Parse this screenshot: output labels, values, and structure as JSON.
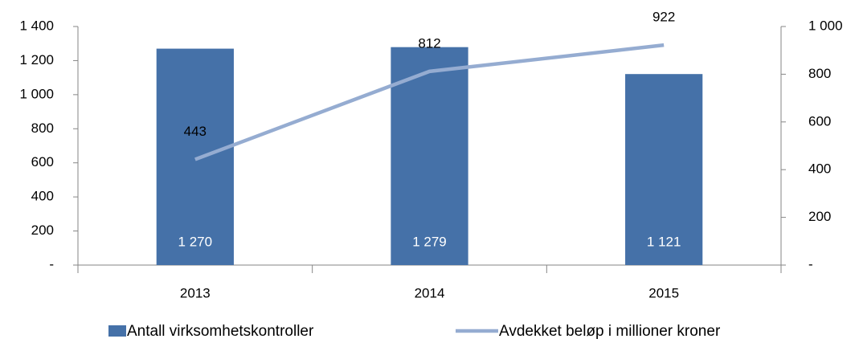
{
  "chart_data": {
    "type": "combo",
    "categories": [
      "2013",
      "2014",
      "2015"
    ],
    "series": [
      {
        "name": "Antall virksomhetskontroller",
        "type": "bar",
        "color": "#4571a8",
        "values": [
          1270,
          1279,
          1121
        ],
        "value_labels": [
          "1 270",
          "1 279",
          "1 121"
        ]
      },
      {
        "name": "Avdekket beløp i millioner kroner",
        "type": "line",
        "axis": "y2",
        "color": "#95acd1",
        "values": [
          443,
          812,
          922
        ]
      }
    ],
    "ylim": [
      0,
      1400
    ],
    "yticks": [
      {
        "value": 0,
        "label": "-"
      },
      200,
      400,
      600,
      800,
      {
        "value": 1000,
        "label": "1 000"
      },
      {
        "value": 1200,
        "label": "1 200"
      },
      {
        "value": 1400,
        "label": "1 400"
      }
    ],
    "y2lim": [
      0,
      1000
    ],
    "y2ticks": [
      {
        "value": 0,
        "label": "-"
      },
      200,
      400,
      600,
      800,
      {
        "value": 1000,
        "label": "1 000"
      }
    ],
    "legend": "bottom"
  }
}
